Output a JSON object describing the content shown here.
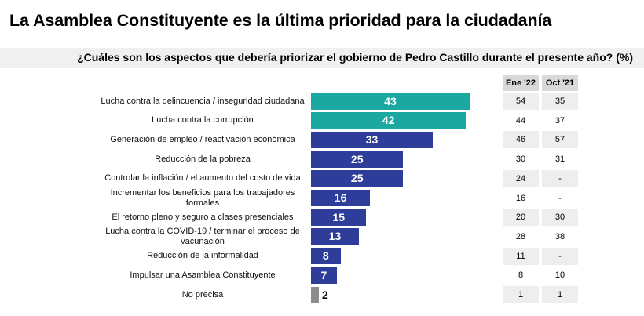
{
  "title": "La Asamblea Constituyente es la última prioridad para la ciudadanía",
  "subtitle": "¿Cuáles son los aspectos que debería priorizar el gobierno de Pedro Castillo durante el presente año? (%)",
  "colors": {
    "teal": "#1aa8a0",
    "navy": "#2d3d99",
    "gray": "#8c8c8c"
  },
  "chart_data": {
    "type": "bar",
    "orientation": "horizontal",
    "categories": [
      "Lucha contra la delincuencia / inseguridad ciudadana",
      "Lucha contra la corrupción",
      "Generación de empleo / reactivación económica",
      "Reducción de la pobreza",
      "Controlar la inflación / el aumento del costo de vida",
      "Incrementar los beneficios para los trabajadores formales",
      "El retorno pleno y seguro a clases presenciales",
      "Lucha contra la COVID-19 / terminar el proceso de vacunación",
      "Reducción de la informalidad",
      "Impulsar una Asamblea Constituyente",
      "No precisa"
    ],
    "values": [
      43,
      42,
      33,
      25,
      25,
      16,
      15,
      13,
      8,
      7,
      2
    ],
    "bar_colors": [
      "teal",
      "teal",
      "navy",
      "navy",
      "navy",
      "navy",
      "navy",
      "navy",
      "navy",
      "navy",
      "gray"
    ],
    "xlim": [
      0,
      43
    ],
    "table": {
      "headers": [
        "Ene '22",
        "Oct '21"
      ],
      "rows": [
        [
          "54",
          "35"
        ],
        [
          "44",
          "37"
        ],
        [
          "46",
          "57"
        ],
        [
          "30",
          "31"
        ],
        [
          "24",
          "-"
        ],
        [
          "16",
          "-"
        ],
        [
          "20",
          "30"
        ],
        [
          "28",
          "38"
        ],
        [
          "11",
          "-"
        ],
        [
          "8",
          "10"
        ],
        [
          "1",
          "1"
        ]
      ]
    }
  }
}
